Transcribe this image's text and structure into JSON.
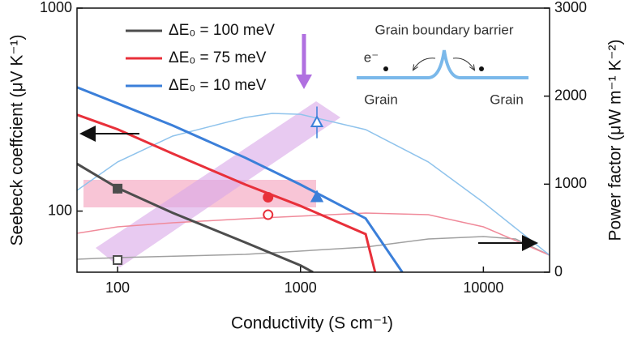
{
  "chart_data": {
    "type": "line",
    "x_label": "Conductivity (S cm⁻¹)",
    "y_label": "Seebeck coeffcient (μV K⁻¹)",
    "y2_label": "Power factor (μW m⁻¹ K⁻²)",
    "xlog": true,
    "ylog": true,
    "xlim": [
      60,
      23000
    ],
    "xticks": [
      100,
      1000,
      10000
    ],
    "ylim": [
      50,
      1000
    ],
    "yticks": [
      100,
      1000
    ],
    "y2lim": [
      0,
      3000
    ],
    "y2ticks": [
      0,
      1000,
      2000,
      3000
    ],
    "series": [
      {
        "name": "ΔE₀ = 100 meV",
        "color": "#4d4d4d",
        "x": [
          60,
          100,
          200,
          500,
          1000,
          1170
        ],
        "values": [
          171,
          130,
          98,
          70,
          54,
          50
        ]
      },
      {
        "name": "ΔE₀ = 75 meV",
        "color": "#e8303a",
        "x": [
          60,
          100,
          200,
          500,
          1000,
          2270,
          2560
        ],
        "values": [
          298,
          253,
          192,
          135,
          106,
          77,
          50
        ]
      },
      {
        "name": "ΔE₀ = 10 meV",
        "color": "#3b7fd9",
        "x": [
          60,
          100,
          200,
          500,
          1000,
          2270,
          3600
        ],
        "values": [
          407,
          339,
          264,
          183,
          135,
          92,
          50
        ]
      }
    ],
    "y2_series": [
      {
        "color": "#a0a0a0",
        "axis": "y2",
        "x": [
          60,
          100,
          500,
          2270,
          5000,
          10000,
          15000,
          23000
        ],
        "values": [
          147,
          166,
          202,
          285,
          377,
          405,
          377,
          193
        ]
      },
      {
        "color": "#f08a9a",
        "axis": "y2",
        "x": [
          60,
          100,
          200,
          500,
          2270,
          5000,
          10000,
          23000
        ],
        "values": [
          442,
          515,
          561,
          607,
          672,
          653,
          515,
          193
        ]
      },
      {
        "color": "#8fc3ec",
        "axis": "y2",
        "x": [
          60,
          100,
          200,
          500,
          700,
          1000,
          2270,
          5000,
          10000,
          23000
        ],
        "values": [
          929,
          1252,
          1546,
          1758,
          1804,
          1794,
          1620,
          1252,
          792,
          193
        ]
      }
    ],
    "markers": [
      {
        "shape": "square",
        "filled": true,
        "color": "#4d4d4d",
        "x": 100,
        "value": 129,
        "error": 7
      },
      {
        "shape": "square",
        "filled": false,
        "color": "#4d4d4d",
        "axis": "y2",
        "x": 100,
        "value": 138,
        "error": 20
      },
      {
        "shape": "circle",
        "filled": true,
        "color": "#e8303a",
        "x": 665,
        "value": 117,
        "error": 5
      },
      {
        "shape": "circle",
        "filled": false,
        "color": "#e8303a",
        "axis": "y2",
        "x": 665,
        "value": 653,
        "error": 30
      },
      {
        "shape": "triangle",
        "filled": true,
        "color": "#3b7fd9",
        "x": 1230,
        "value": 117,
        "error": 6
      },
      {
        "shape": "triangle",
        "filled": false,
        "color": "#3b7fd9",
        "axis": "y2",
        "x": 1230,
        "value": 1702,
        "error": 180
      }
    ],
    "inset": {
      "title": "Grain boundary barrier",
      "electron": "e⁻",
      "left": "Grain",
      "right": "Grain"
    }
  }
}
